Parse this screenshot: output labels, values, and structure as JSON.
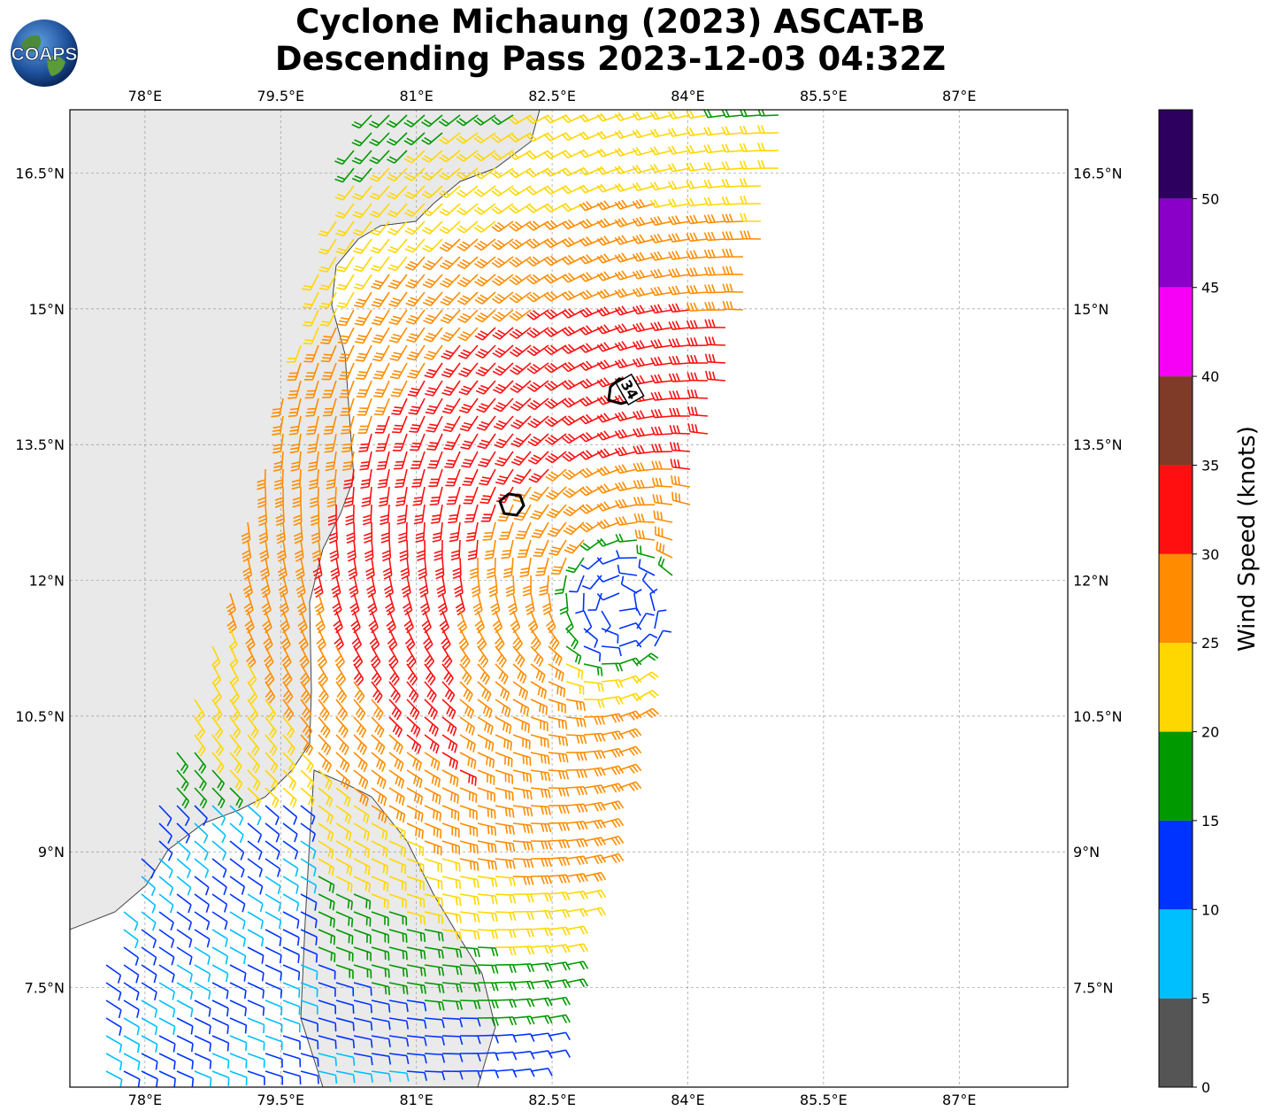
{
  "title": {
    "line1": "Cyclone Michaung (2023) ASCAT-B",
    "line2": "Descending Pass 2023-12-03 04:32Z"
  },
  "logo": {
    "text": "COAPS",
    "icon": "globe-icon"
  },
  "map": {
    "lon_ticks": [
      "78°E",
      "79.5°E",
      "81°E",
      "82.5°E",
      "84°E",
      "85.5°E",
      "87°E"
    ],
    "lat_ticks": [
      "16.5°N",
      "15°N",
      "13.5°N",
      "12°N",
      "10.5°N",
      "9°N",
      "7.5°N"
    ],
    "lon_range": [
      77.17,
      88.2
    ],
    "lat_range": [
      6.4,
      17.2
    ],
    "contour_label": "34",
    "storm_center": [
      83.25,
      11.7
    ],
    "gridlines": true
  },
  "colorbar": {
    "label": "Wind Speed (knots)",
    "ticks": [
      "0",
      "5",
      "10",
      "15",
      "20",
      "25",
      "30",
      "35",
      "40",
      "45",
      "50"
    ],
    "bins": [
      {
        "min": 0,
        "max": 5,
        "color": "#555555"
      },
      {
        "min": 5,
        "max": 10,
        "color": "#00bfff"
      },
      {
        "min": 10,
        "max": 15,
        "color": "#0033ff"
      },
      {
        "min": 15,
        "max": 20,
        "color": "#009900"
      },
      {
        "min": 20,
        "max": 25,
        "color": "#ffd700"
      },
      {
        "min": 25,
        "max": 30,
        "color": "#ff8c00"
      },
      {
        "min": 30,
        "max": 35,
        "color": "#ff0f0f"
      },
      {
        "min": 35,
        "max": 40,
        "color": "#7f3a28"
      },
      {
        "min": 40,
        "max": 45,
        "color": "#f600f6"
      },
      {
        "min": 45,
        "max": 50,
        "color": "#8a00c8"
      },
      {
        "min": 50,
        "max": 55,
        "color": "#2d0060"
      }
    ]
  }
}
